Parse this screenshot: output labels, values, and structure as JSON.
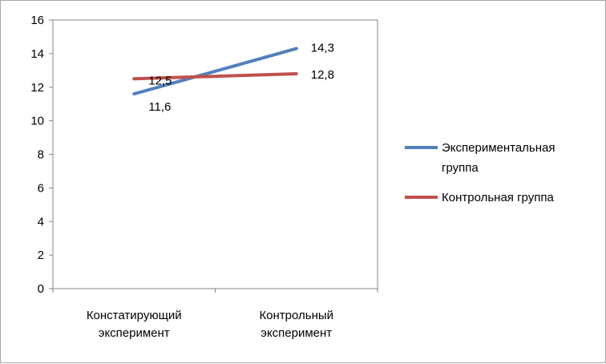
{
  "chart_data": {
    "type": "line",
    "categories": [
      [
        "Констатирующий",
        "эксперимент"
      ],
      [
        "Контрольный",
        "эксперимент"
      ]
    ],
    "series": [
      {
        "name": [
          "Экспериментальная",
          "группа"
        ],
        "values": [
          11.6,
          14.3
        ],
        "labels": [
          "11,6",
          "14,3"
        ],
        "color": "#4f81bd"
      },
      {
        "name": [
          "Контрольная группа"
        ],
        "values": [
          12.5,
          12.8
        ],
        "labels": [
          "12,5",
          "12,8"
        ],
        "color": "#c0504d"
      }
    ],
    "yticks": [
      "0",
      "2",
      "4",
      "6",
      "8",
      "10",
      "12",
      "14",
      "16"
    ],
    "ylim": [
      0,
      16
    ],
    "grid": false,
    "legend": "right"
  }
}
